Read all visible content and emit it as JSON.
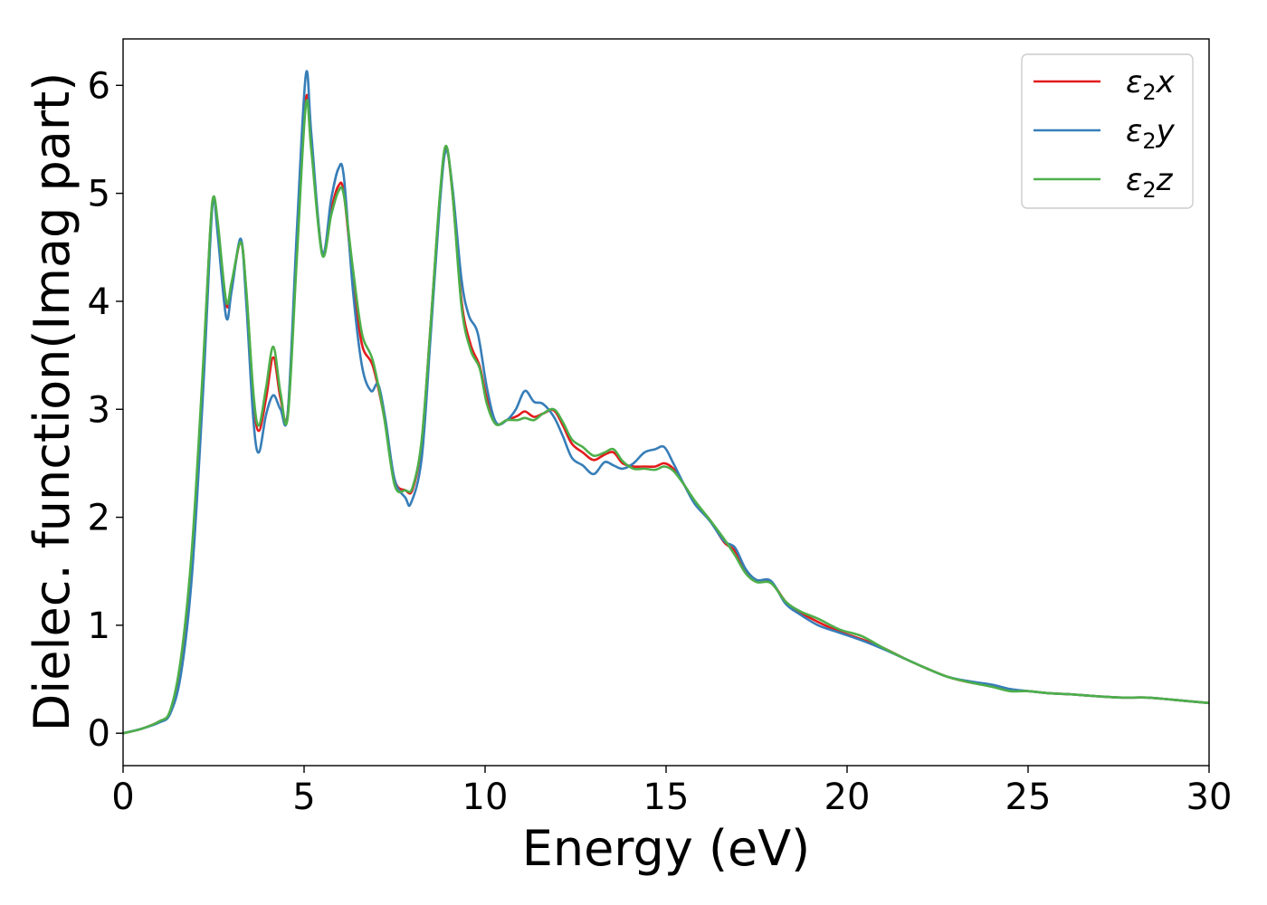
{
  "chart_data": {
    "type": "line",
    "title": "",
    "xlabel": "Energy (eV)",
    "ylabel": "Dielec. function(Imag part)",
    "xlim": [
      0,
      30
    ],
    "ylim": [
      -0.3,
      6.43
    ],
    "xticks": [
      0,
      5,
      10,
      15,
      20,
      25,
      30
    ],
    "yticks": [
      0,
      1,
      2,
      3,
      4,
      5,
      6
    ],
    "grid": false,
    "legend_position": "top-right",
    "series": [
      {
        "name": "ε2x",
        "color": "#e31a1c",
        "points": [
          [
            0,
            0
          ],
          [
            0.5,
            0.04
          ],
          [
            1.0,
            0.11
          ],
          [
            1.3,
            0.2
          ],
          [
            1.6,
            0.65
          ],
          [
            1.9,
            1.65
          ],
          [
            2.2,
            3.3
          ],
          [
            2.4,
            4.6
          ],
          [
            2.5,
            4.96
          ],
          [
            2.62,
            4.7
          ],
          [
            2.85,
            3.97
          ],
          [
            3.0,
            4.15
          ],
          [
            3.25,
            4.55
          ],
          [
            3.4,
            4.1
          ],
          [
            3.6,
            3.1
          ],
          [
            3.75,
            2.8
          ],
          [
            3.95,
            3.1
          ],
          [
            4.15,
            3.48
          ],
          [
            4.35,
            3.1
          ],
          [
            4.55,
            2.97
          ],
          [
            4.8,
            4.5
          ],
          [
            5.05,
            5.87
          ],
          [
            5.2,
            5.45
          ],
          [
            5.5,
            4.45
          ],
          [
            5.75,
            4.85
          ],
          [
            5.95,
            5.07
          ],
          [
            6.1,
            5.0
          ],
          [
            6.35,
            4.2
          ],
          [
            6.6,
            3.6
          ],
          [
            6.9,
            3.4
          ],
          [
            7.2,
            2.95
          ],
          [
            7.5,
            2.35
          ],
          [
            7.8,
            2.25
          ],
          [
            8.0,
            2.26
          ],
          [
            8.25,
            2.7
          ],
          [
            8.5,
            3.8
          ],
          [
            8.75,
            4.95
          ],
          [
            8.92,
            5.42
          ],
          [
            9.1,
            5.0
          ],
          [
            9.35,
            4.0
          ],
          [
            9.6,
            3.6
          ],
          [
            9.85,
            3.4
          ],
          [
            10.05,
            3.1
          ],
          [
            10.3,
            2.87
          ],
          [
            10.6,
            2.9
          ],
          [
            10.9,
            2.94
          ],
          [
            11.1,
            2.98
          ],
          [
            11.35,
            2.93
          ],
          [
            11.6,
            2.96
          ],
          [
            11.9,
            2.99
          ],
          [
            12.15,
            2.85
          ],
          [
            12.4,
            2.68
          ],
          [
            12.7,
            2.6
          ],
          [
            13.0,
            2.53
          ],
          [
            13.3,
            2.58
          ],
          [
            13.55,
            2.6
          ],
          [
            13.8,
            2.5
          ],
          [
            14.1,
            2.47
          ],
          [
            14.4,
            2.47
          ],
          [
            14.7,
            2.47
          ],
          [
            14.95,
            2.5
          ],
          [
            15.2,
            2.45
          ],
          [
            15.5,
            2.3
          ],
          [
            15.8,
            2.13
          ],
          [
            16.2,
            1.98
          ],
          [
            16.6,
            1.77
          ],
          [
            16.9,
            1.69
          ],
          [
            17.2,
            1.5
          ],
          [
            17.5,
            1.41
          ],
          [
            17.9,
            1.4
          ],
          [
            18.3,
            1.22
          ],
          [
            18.7,
            1.12
          ],
          [
            19.2,
            1.03
          ],
          [
            19.8,
            0.94
          ],
          [
            20.4,
            0.87
          ],
          [
            21.0,
            0.79
          ],
          [
            21.6,
            0.69
          ],
          [
            22.2,
            0.6
          ],
          [
            22.8,
            0.52
          ],
          [
            23.4,
            0.47
          ],
          [
            24.0,
            0.44
          ],
          [
            24.5,
            0.4
          ],
          [
            25.0,
            0.39
          ],
          [
            25.6,
            0.37
          ],
          [
            26.2,
            0.36
          ],
          [
            27.0,
            0.34
          ],
          [
            27.6,
            0.33
          ],
          [
            28.3,
            0.33
          ],
          [
            29.0,
            0.31
          ],
          [
            30.0,
            0.28
          ]
        ]
      },
      {
        "name": "ε2y",
        "color": "#377eb8",
        "points": [
          [
            0,
            0
          ],
          [
            0.5,
            0.04
          ],
          [
            1.0,
            0.1
          ],
          [
            1.3,
            0.18
          ],
          [
            1.6,
            0.55
          ],
          [
            1.9,
            1.45
          ],
          [
            2.2,
            3.1
          ],
          [
            2.4,
            4.5
          ],
          [
            2.5,
            4.96
          ],
          [
            2.62,
            4.6
          ],
          [
            2.85,
            3.85
          ],
          [
            3.0,
            4.1
          ],
          [
            3.25,
            4.58
          ],
          [
            3.4,
            4.0
          ],
          [
            3.6,
            2.9
          ],
          [
            3.75,
            2.6
          ],
          [
            3.95,
            2.95
          ],
          [
            4.15,
            3.13
          ],
          [
            4.35,
            3.0
          ],
          [
            4.55,
            2.97
          ],
          [
            4.8,
            4.65
          ],
          [
            5.05,
            6.1
          ],
          [
            5.2,
            5.55
          ],
          [
            5.5,
            4.45
          ],
          [
            5.75,
            4.95
          ],
          [
            5.95,
            5.23
          ],
          [
            6.1,
            5.15
          ],
          [
            6.35,
            4.1
          ],
          [
            6.6,
            3.4
          ],
          [
            6.85,
            3.17
          ],
          [
            7.05,
            3.23
          ],
          [
            7.25,
            2.9
          ],
          [
            7.5,
            2.35
          ],
          [
            7.8,
            2.18
          ],
          [
            7.95,
            2.13
          ],
          [
            8.25,
            2.55
          ],
          [
            8.5,
            3.7
          ],
          [
            8.75,
            4.9
          ],
          [
            8.92,
            5.4
          ],
          [
            9.1,
            5.05
          ],
          [
            9.35,
            4.2
          ],
          [
            9.55,
            3.87
          ],
          [
            9.8,
            3.7
          ],
          [
            10.05,
            3.2
          ],
          [
            10.3,
            2.88
          ],
          [
            10.6,
            2.9
          ],
          [
            10.85,
            3.0
          ],
          [
            11.1,
            3.17
          ],
          [
            11.35,
            3.07
          ],
          [
            11.6,
            3.05
          ],
          [
            11.9,
            2.93
          ],
          [
            12.15,
            2.75
          ],
          [
            12.4,
            2.55
          ],
          [
            12.7,
            2.48
          ],
          [
            13.0,
            2.4
          ],
          [
            13.3,
            2.51
          ],
          [
            13.55,
            2.48
          ],
          [
            13.8,
            2.45
          ],
          [
            14.1,
            2.5
          ],
          [
            14.4,
            2.6
          ],
          [
            14.7,
            2.63
          ],
          [
            14.95,
            2.65
          ],
          [
            15.2,
            2.5
          ],
          [
            15.5,
            2.3
          ],
          [
            15.8,
            2.12
          ],
          [
            16.2,
            1.97
          ],
          [
            16.6,
            1.78
          ],
          [
            16.9,
            1.72
          ],
          [
            17.2,
            1.52
          ],
          [
            17.5,
            1.42
          ],
          [
            17.9,
            1.41
          ],
          [
            18.3,
            1.2
          ],
          [
            18.7,
            1.1
          ],
          [
            19.2,
            1.0
          ],
          [
            19.8,
            0.93
          ],
          [
            20.4,
            0.86
          ],
          [
            21.0,
            0.78
          ],
          [
            21.6,
            0.69
          ],
          [
            22.2,
            0.6
          ],
          [
            22.8,
            0.52
          ],
          [
            23.4,
            0.48
          ],
          [
            24.0,
            0.45
          ],
          [
            24.5,
            0.41
          ],
          [
            25.0,
            0.39
          ],
          [
            25.6,
            0.37
          ],
          [
            26.2,
            0.36
          ],
          [
            27.0,
            0.34
          ],
          [
            27.6,
            0.33
          ],
          [
            28.3,
            0.33
          ],
          [
            29.0,
            0.31
          ],
          [
            30.0,
            0.28
          ]
        ]
      },
      {
        "name": "ε2z",
        "color": "#4daf4a",
        "points": [
          [
            0,
            0
          ],
          [
            0.5,
            0.04
          ],
          [
            1.0,
            0.11
          ],
          [
            1.3,
            0.21
          ],
          [
            1.6,
            0.7
          ],
          [
            1.9,
            1.7
          ],
          [
            2.2,
            3.35
          ],
          [
            2.4,
            4.62
          ],
          [
            2.5,
            4.97
          ],
          [
            2.62,
            4.72
          ],
          [
            2.85,
            4.0
          ],
          [
            3.0,
            4.18
          ],
          [
            3.25,
            4.55
          ],
          [
            3.4,
            4.12
          ],
          [
            3.6,
            3.15
          ],
          [
            3.75,
            2.85
          ],
          [
            3.95,
            3.2
          ],
          [
            4.15,
            3.58
          ],
          [
            4.35,
            3.15
          ],
          [
            4.55,
            2.93
          ],
          [
            4.8,
            4.4
          ],
          [
            5.05,
            5.82
          ],
          [
            5.2,
            5.4
          ],
          [
            5.5,
            4.43
          ],
          [
            5.75,
            4.8
          ],
          [
            5.95,
            5.02
          ],
          [
            6.1,
            4.98
          ],
          [
            6.35,
            4.3
          ],
          [
            6.6,
            3.7
          ],
          [
            6.9,
            3.45
          ],
          [
            7.2,
            2.95
          ],
          [
            7.5,
            2.3
          ],
          [
            7.8,
            2.25
          ],
          [
            8.0,
            2.28
          ],
          [
            8.25,
            2.72
          ],
          [
            8.5,
            3.8
          ],
          [
            8.75,
            4.98
          ],
          [
            8.92,
            5.44
          ],
          [
            9.1,
            5.0
          ],
          [
            9.35,
            3.95
          ],
          [
            9.6,
            3.55
          ],
          [
            9.85,
            3.38
          ],
          [
            10.05,
            3.05
          ],
          [
            10.3,
            2.86
          ],
          [
            10.6,
            2.9
          ],
          [
            10.9,
            2.9
          ],
          [
            11.1,
            2.92
          ],
          [
            11.35,
            2.9
          ],
          [
            11.6,
            2.96
          ],
          [
            11.9,
            3.0
          ],
          [
            12.15,
            2.88
          ],
          [
            12.4,
            2.72
          ],
          [
            12.7,
            2.65
          ],
          [
            13.0,
            2.57
          ],
          [
            13.3,
            2.6
          ],
          [
            13.55,
            2.63
          ],
          [
            13.8,
            2.52
          ],
          [
            14.1,
            2.45
          ],
          [
            14.4,
            2.45
          ],
          [
            14.7,
            2.44
          ],
          [
            14.95,
            2.47
          ],
          [
            15.2,
            2.43
          ],
          [
            15.5,
            2.3
          ],
          [
            15.8,
            2.15
          ],
          [
            16.2,
            1.98
          ],
          [
            16.6,
            1.8
          ],
          [
            16.9,
            1.65
          ],
          [
            17.2,
            1.48
          ],
          [
            17.5,
            1.4
          ],
          [
            17.9,
            1.39
          ],
          [
            18.3,
            1.22
          ],
          [
            18.7,
            1.13
          ],
          [
            19.2,
            1.06
          ],
          [
            19.8,
            0.96
          ],
          [
            20.4,
            0.9
          ],
          [
            21.0,
            0.79
          ],
          [
            21.6,
            0.69
          ],
          [
            22.2,
            0.6
          ],
          [
            22.8,
            0.52
          ],
          [
            23.4,
            0.47
          ],
          [
            24.0,
            0.43
          ],
          [
            24.5,
            0.39
          ],
          [
            25.0,
            0.39
          ],
          [
            25.6,
            0.37
          ],
          [
            26.2,
            0.36
          ],
          [
            27.0,
            0.34
          ],
          [
            27.6,
            0.33
          ],
          [
            28.3,
            0.33
          ],
          [
            29.0,
            0.31
          ],
          [
            30.0,
            0.28
          ]
        ]
      }
    ]
  }
}
